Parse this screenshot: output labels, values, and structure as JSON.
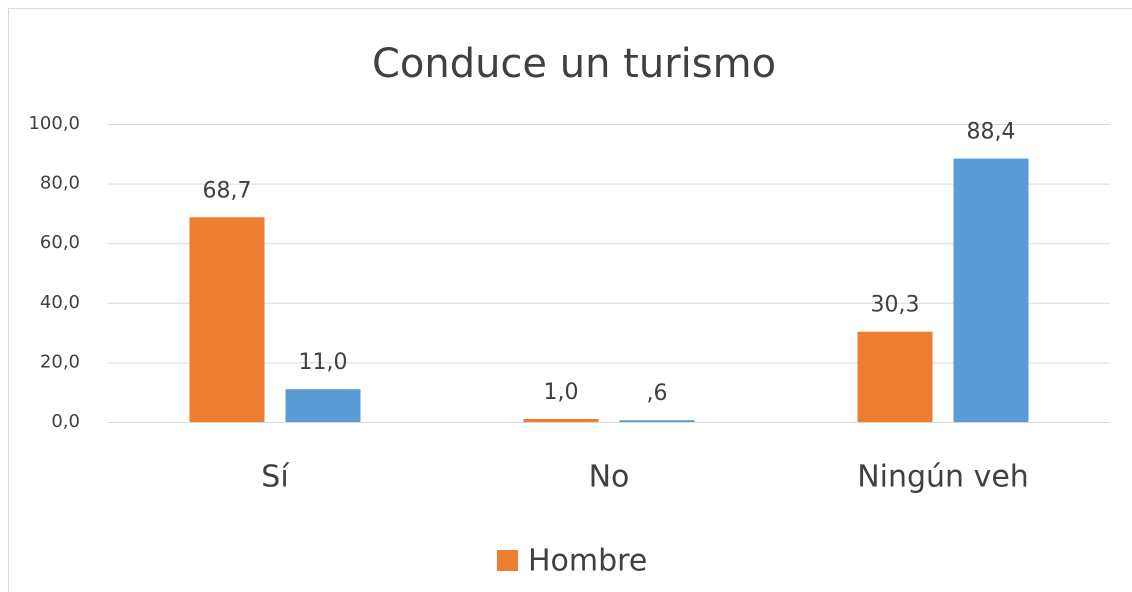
{
  "chart_data": {
    "type": "bar",
    "title": "Conduce un turismo",
    "categories": [
      "Sí",
      "No",
      "Ningún veh"
    ],
    "series": [
      {
        "name": "Hombre",
        "color": "#ed7d31",
        "values": [
          68.7,
          1.0,
          30.3
        ],
        "value_labels": [
          "68,7",
          "1,0",
          "30,3"
        ]
      },
      {
        "color": "#5b9bd5",
        "values": [
          11.0,
          0.6,
          88.4
        ],
        "value_labels": [
          "11,0",
          ",6",
          "88,4"
        ]
      }
    ],
    "ylim": [
      0,
      100
    ],
    "yticks": [
      {
        "value": 0,
        "label": "0,0"
      },
      {
        "value": 20,
        "label": "20,0"
      },
      {
        "value": 40,
        "label": "40,0"
      },
      {
        "value": 60,
        "label": "60,0"
      },
      {
        "value": 80,
        "label": "80,0"
      },
      {
        "value": 100,
        "label": "100,0"
      }
    ],
    "grid": true,
    "legend": "bottom"
  }
}
